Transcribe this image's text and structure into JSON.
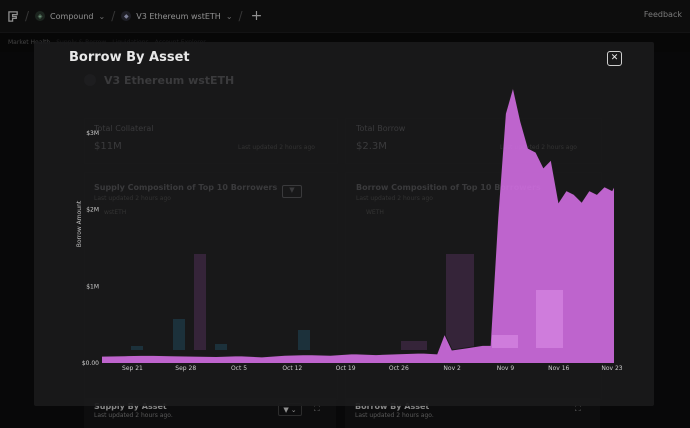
{
  "topbar": {
    "crumbs": [
      {
        "label": "Compound",
        "icon": "compound-icon"
      },
      {
        "label": "V3 Ethereum wstETH",
        "icon": "ethereum-icon"
      }
    ],
    "feedback": "Feedback"
  },
  "subbar": {
    "items": [
      "Market Health",
      "Supply & Borrow",
      "Liquidations",
      "Account Explorer"
    ]
  },
  "background": {
    "market_title": "V3 Ethereum wstETH",
    "stat_left": {
      "label": "Total Collateral",
      "value": "$11M",
      "meta": "Last updated 2 hours ago"
    },
    "stat_right": {
      "label": "Total Borrow",
      "value": "$2.3M",
      "meta": "Last updated 2 hours ago"
    },
    "card_left_title": "Supply Composition of Top 10 Borrowers",
    "card_left_sub": "Last updated 2 hours ago",
    "card_left_legend": "wstETH",
    "card_right_title": "Borrow Composition of Top 10 Borrowers",
    "card_right_sub": "Last updated 2 hours ago",
    "card_right_legend": "WETH",
    "bottom_left": {
      "title": "Supply By Asset",
      "sub": "Last updated 2 hours ago."
    },
    "bottom_right": {
      "title": "Borrow By Asset",
      "sub": "Last updated 2 hours ago."
    }
  },
  "modal": {
    "title": "Borrow By Asset",
    "close": "✕"
  },
  "chart_data": {
    "type": "area",
    "title": "",
    "xlabel": "",
    "ylabel": "Borrow Amount",
    "ylim": [
      0,
      3000000
    ],
    "y_ticks": [
      {
        "value": 0,
        "label": "$0.00"
      },
      {
        "value": 1000000,
        "label": "$1M"
      },
      {
        "value": 2000000,
        "label": "$2M"
      },
      {
        "value": 3000000,
        "label": "$3M"
      }
    ],
    "x_tick_labels": [
      "Sep 21",
      "Sep 28",
      "Oct 5",
      "Oct 12",
      "Oct 19",
      "Oct 26",
      "Nov 2",
      "Nov 9",
      "Nov 16",
      "Nov 23"
    ],
    "x_start": "2023-09-17",
    "x_end": "2023-11-23",
    "grid": false,
    "legend": "none",
    "color": "#d56ee6",
    "series": [
      {
        "points": [
          [
            "2023-09-17",
            90000
          ],
          [
            "2023-09-20",
            95000
          ],
          [
            "2023-09-23",
            100000
          ],
          [
            "2023-09-26",
            95000
          ],
          [
            "2023-09-29",
            90000
          ],
          [
            "2023-10-02",
            85000
          ],
          [
            "2023-10-05",
            95000
          ],
          [
            "2023-10-08",
            80000
          ],
          [
            "2023-10-11",
            100000
          ],
          [
            "2023-10-14",
            110000
          ],
          [
            "2023-10-17",
            100000
          ],
          [
            "2023-10-20",
            120000
          ],
          [
            "2023-10-23",
            110000
          ],
          [
            "2023-10-26",
            120000
          ],
          [
            "2023-10-29",
            130000
          ],
          [
            "2023-10-31",
            120000
          ],
          [
            "2023-11-01",
            380000
          ],
          [
            "2023-11-02",
            170000
          ],
          [
            "2023-11-04",
            200000
          ],
          [
            "2023-11-06",
            230000
          ],
          [
            "2023-11-07",
            230000
          ],
          [
            "2023-11-08",
            1900000
          ],
          [
            "2023-11-09",
            3250000
          ],
          [
            "2023-11-10",
            3600000
          ],
          [
            "2023-11-11",
            3150000
          ],
          [
            "2023-11-12",
            2800000
          ],
          [
            "2023-11-13",
            2750000
          ],
          [
            "2023-11-14",
            2550000
          ],
          [
            "2023-11-15",
            2650000
          ],
          [
            "2023-11-16",
            2100000
          ],
          [
            "2023-11-17",
            2250000
          ],
          [
            "2023-11-18",
            2200000
          ],
          [
            "2023-11-19",
            2100000
          ],
          [
            "2023-11-20",
            2250000
          ],
          [
            "2023-11-21",
            2200000
          ],
          [
            "2023-11-22",
            2300000
          ],
          [
            "2023-11-23",
            2250000
          ],
          [
            "2023-11-24",
            2300000
          ]
        ]
      }
    ]
  }
}
